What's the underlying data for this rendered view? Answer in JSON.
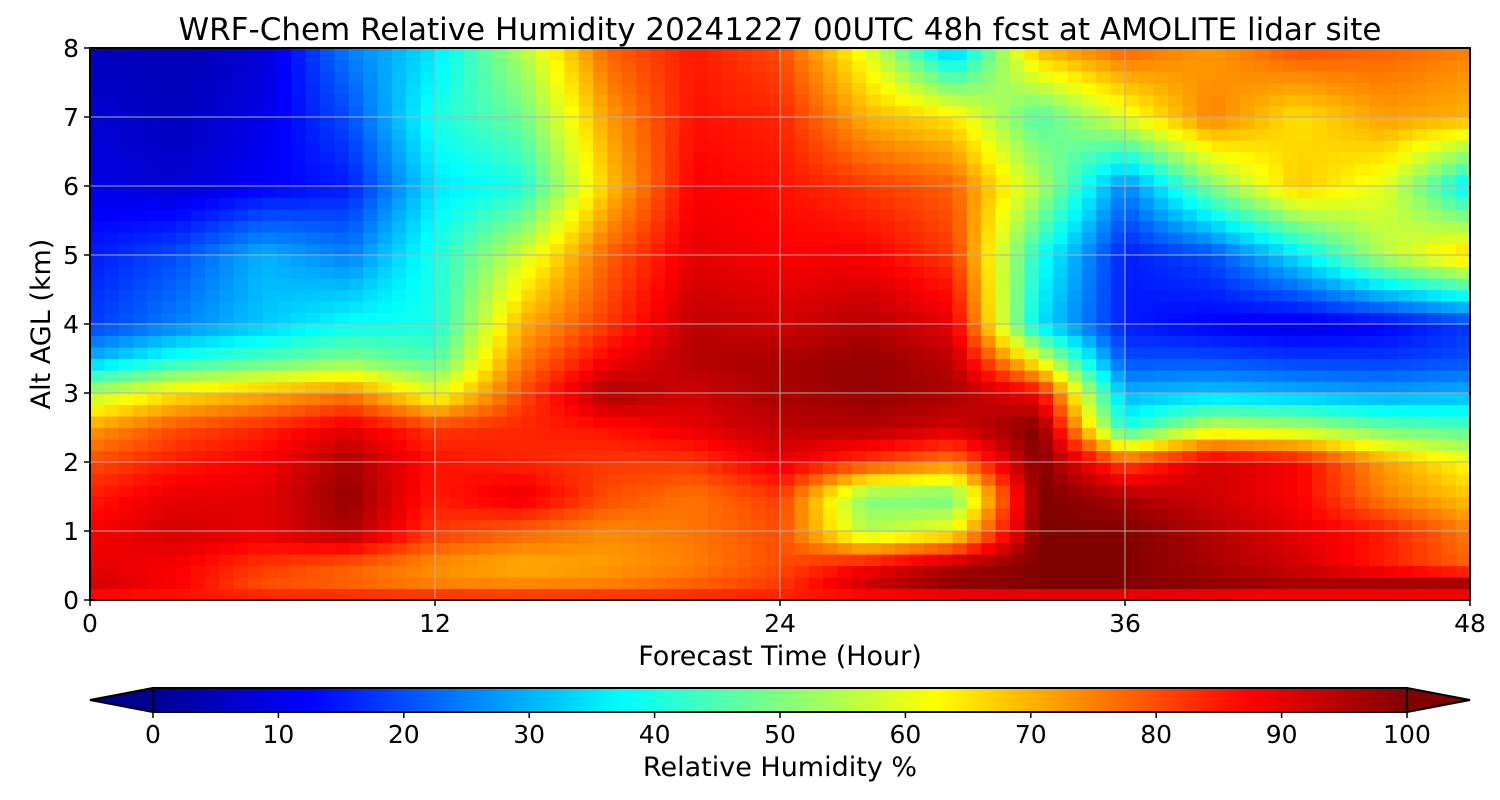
{
  "chart_data": {
    "type": "heatmap",
    "title": "WRF-Chem Relative Humidity 20241227 00UTC 48h fcst at AMOLITE lidar site",
    "xlabel": "Forecast Time (Hour)",
    "ylabel": "Alt AGL (km)",
    "xlim": [
      0,
      48
    ],
    "ylim": [
      0,
      8
    ],
    "x_ticks": [
      "0",
      "12",
      "24",
      "36",
      "48"
    ],
    "y_ticks": [
      "0",
      "1",
      "2",
      "3",
      "4",
      "5",
      "6",
      "7",
      "8"
    ],
    "grid": true,
    "colormap": "jet",
    "colorbar": {
      "label": "Relative Humidity %",
      "min": 0,
      "max": 100,
      "ticks": [
        "0",
        "10",
        "20",
        "30",
        "40",
        "50",
        "60",
        "70",
        "80",
        "90",
        "100"
      ],
      "extend": "both"
    },
    "x": [
      0,
      3,
      6,
      9,
      12,
      15,
      18,
      21,
      24,
      27,
      30,
      33,
      36,
      39,
      42,
      45,
      48
    ],
    "y": [
      0,
      0.25,
      0.5,
      1,
      1.5,
      2,
      2.5,
      3,
      3.5,
      4,
      5,
      6,
      7,
      8
    ],
    "values": [
      [
        85,
        85,
        85,
        85,
        85,
        85,
        85,
        85,
        85,
        85,
        85,
        85,
        85,
        85,
        85,
        85,
        85
      ],
      [
        92,
        88,
        80,
        78,
        75,
        74,
        75,
        78,
        82,
        92,
        98,
        100,
        100,
        98,
        96,
        96,
        96
      ],
      [
        90,
        88,
        82,
        78,
        73,
        70,
        72,
        75,
        80,
        88,
        96,
        100,
        100,
        96,
        92,
        85,
        78
      ],
      [
        88,
        92,
        90,
        96,
        82,
        78,
        74,
        76,
        80,
        55,
        62,
        100,
        100,
        95,
        90,
        85,
        75
      ],
      [
        85,
        90,
        90,
        98,
        85,
        90,
        80,
        76,
        82,
        50,
        48,
        100,
        96,
        92,
        88,
        75,
        68
      ],
      [
        80,
        85,
        88,
        96,
        86,
        84,
        82,
        82,
        90,
        82,
        75,
        100,
        80,
        92,
        88,
        72,
        62
      ],
      [
        72,
        80,
        84,
        90,
        82,
        84,
        86,
        90,
        94,
        95,
        92,
        100,
        40,
        58,
        55,
        48,
        45
      ],
      [
        55,
        65,
        70,
        75,
        60,
        80,
        96,
        92,
        96,
        98,
        96,
        88,
        30,
        32,
        30,
        28,
        30
      ],
      [
        30,
        40,
        45,
        50,
        45,
        75,
        88,
        95,
        96,
        98,
        94,
        60,
        20,
        20,
        18,
        18,
        20
      ],
      [
        18,
        25,
        32,
        38,
        40,
        70,
        82,
        94,
        92,
        95,
        90,
        35,
        15,
        12,
        10,
        12,
        18
      ],
      [
        15,
        20,
        30,
        25,
        40,
        58,
        78,
        90,
        88,
        88,
        82,
        40,
        15,
        20,
        35,
        55,
        68
      ],
      [
        10,
        8,
        12,
        15,
        35,
        40,
        68,
        88,
        86,
        82,
        78,
        55,
        25,
        50,
        68,
        60,
        35
      ],
      [
        8,
        6,
        10,
        20,
        40,
        48,
        72,
        86,
        84,
        70,
        65,
        45,
        60,
        75,
        65,
        72,
        70
      ],
      [
        6,
        5,
        8,
        25,
        35,
        55,
        78,
        85,
        80,
        60,
        30,
        70,
        78,
        72,
        80,
        78,
        75
      ]
    ]
  }
}
